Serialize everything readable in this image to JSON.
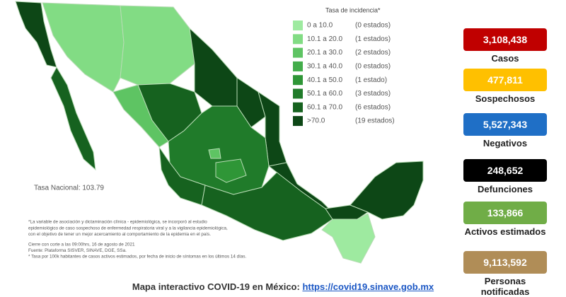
{
  "legend": {
    "title": "Tasa de incidencia*",
    "items": [
      {
        "range": "0  a  10.0",
        "count": "(0 estados)",
        "color": "#9eeaa0"
      },
      {
        "range": "10.1 a  20.0",
        "count": "(1 estados)",
        "color": "#82dc84"
      },
      {
        "range": "20.1 a  30.0",
        "count": "(2 estados)",
        "color": "#5ec463"
      },
      {
        "range": "30.1 a  40.0",
        "count": "(0 estados)",
        "color": "#43ad4b"
      },
      {
        "range": "40.1 a  50.0",
        "count": "(1 estado)",
        "color": "#2f9637"
      },
      {
        "range": "50.1 a  60.0",
        "count": "(3 estados)",
        "color": "#207b2a"
      },
      {
        "range": "60.1 a  70.0",
        "count": "(6 estados)",
        "color": "#16621f"
      },
      {
        "range": ">70.0",
        "count": "(19 estados)",
        "color": "#0d4716"
      }
    ]
  },
  "national_rate": "Tasa Nacional: 103.79",
  "notes": [
    "*La variable de asociación y dictaminación clínica - epidemiológica, se incorporó al estudio",
    "epidemiológico de caso sospechoso de enfermedad respiratoria viral y a la vigilancia epidemiológica,",
    "con el objetivo de tener un mejor acercamiento al comportamiento de la epidemia en el país.",
    "Cierre con corte a las 09:00hrs, 16 de agosto de 2021",
    "Fuente: Plataforma SISVER, SINAVE, DGE, SSa.",
    "* Tasa por 100k habitantes de casos activos estimados, por fecha de inicio de síntomas en los últimos 14 días."
  ],
  "stats": [
    {
      "value": "3,108,438",
      "label": "Casos",
      "color": "#c00000"
    },
    {
      "value": "477,811",
      "label": "Sospechosos",
      "color": "#ffc000"
    },
    {
      "value": "5,527,343",
      "label": "Negativos",
      "color": "#1f6fc6"
    },
    {
      "value": "248,652",
      "label": "Defunciones",
      "color": "#000000"
    },
    {
      "value": "133,866",
      "label": "Activos estimados",
      "color": "#70ad47"
    },
    {
      "value": "9,113,592",
      "label": "Personas notificadas",
      "color": "#b08d57"
    }
  ],
  "footer": {
    "text": "Mapa interactivo COVID-19 en México:",
    "link": "https://covid19.sinave.gob.mx"
  }
}
